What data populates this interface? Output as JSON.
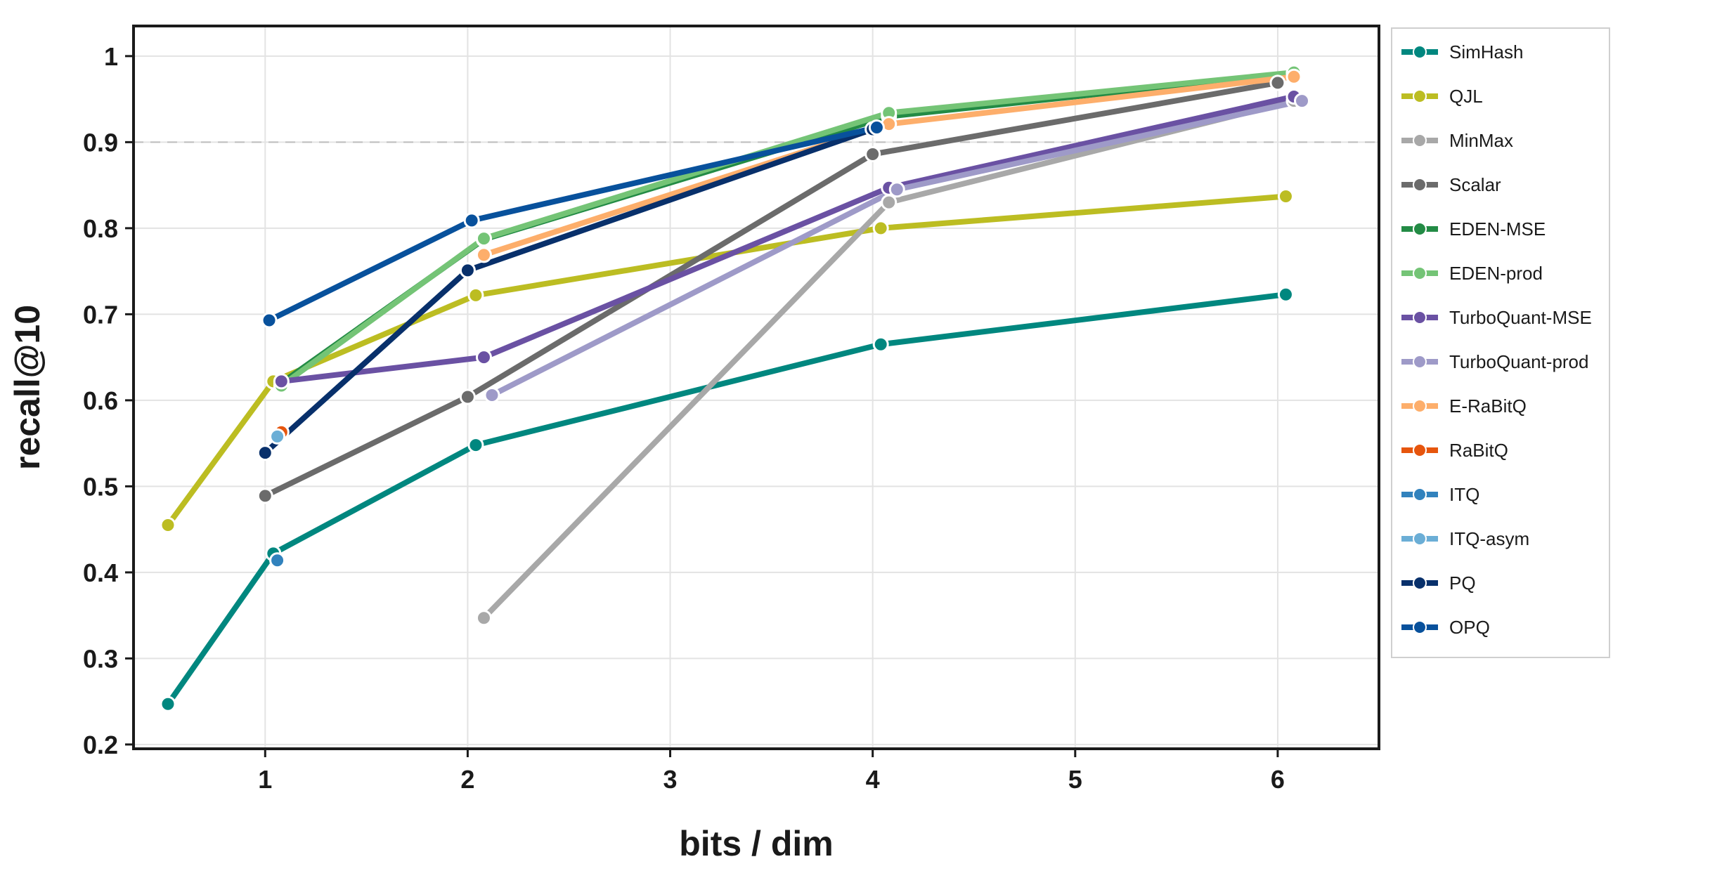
{
  "chart_data": {
    "type": "line",
    "xlabel": "bits / dim",
    "ylabel": "recall@10",
    "xlim": [
      0.35,
      6.5
    ],
    "ylim": [
      0.195,
      1.035
    ],
    "xticks": [
      1,
      2,
      3,
      4,
      5,
      6
    ],
    "yticks": [
      0.2,
      0.3,
      0.4,
      0.5,
      0.6,
      0.7,
      0.8,
      0.9,
      1
    ],
    "ytick_labels": [
      "0.2",
      "0.3",
      "0.4",
      "0.5",
      "0.6",
      "0.7",
      "0.8",
      "0.9",
      "1"
    ],
    "grid": true,
    "reference_line_y": 0.9,
    "legend_position": "outside right",
    "series": [
      {
        "name": "SimHash",
        "color": "#00877f",
        "points": [
          [
            0.52,
            0.247
          ],
          [
            1.04,
            0.422
          ],
          [
            2.04,
            0.548
          ],
          [
            4.04,
            0.665
          ],
          [
            6.04,
            0.723
          ]
        ]
      },
      {
        "name": "QJL",
        "color": "#bcbd22",
        "points": [
          [
            0.52,
            0.455
          ],
          [
            1.04,
            0.622
          ],
          [
            2.04,
            0.722
          ],
          [
            4.04,
            0.8
          ],
          [
            6.04,
            0.837
          ]
        ]
      },
      {
        "name": "MinMax",
        "color": "#a8a8a8",
        "points": [
          [
            2.08,
            0.347
          ],
          [
            4.08,
            0.83
          ],
          [
            6.08,
            0.948
          ]
        ]
      },
      {
        "name": "Scalar",
        "color": "#6b6b6b",
        "points": [
          [
            1.0,
            0.489
          ],
          [
            2.0,
            0.604
          ],
          [
            4.0,
            0.886
          ],
          [
            6.0,
            0.969
          ]
        ]
      },
      {
        "name": "EDEN-MSE",
        "color": "#238b45",
        "points": [
          [
            1.08,
            0.62
          ],
          [
            2.08,
            0.787
          ],
          [
            4.08,
            0.93
          ],
          [
            6.08,
            0.98
          ]
        ]
      },
      {
        "name": "EDEN-prod",
        "color": "#74c476",
        "points": [
          [
            1.08,
            0.617
          ],
          [
            2.08,
            0.788
          ],
          [
            4.08,
            0.934
          ],
          [
            6.08,
            0.981
          ]
        ]
      },
      {
        "name": "TurboQuant-MSE",
        "color": "#6a51a3",
        "points": [
          [
            1.08,
            0.622
          ],
          [
            2.08,
            0.65
          ],
          [
            4.08,
            0.847
          ],
          [
            6.08,
            0.953
          ]
        ]
      },
      {
        "name": "TurboQuant-prod",
        "color": "#9e9ac8",
        "points": [
          [
            2.12,
            0.606
          ],
          [
            4.12,
            0.845
          ],
          [
            6.12,
            0.948
          ]
        ]
      },
      {
        "name": "E-RaBitQ",
        "color": "#fdae6b",
        "points": [
          [
            2.08,
            0.769
          ],
          [
            4.08,
            0.921
          ],
          [
            6.08,
            0.976
          ]
        ]
      },
      {
        "name": "RaBitQ",
        "color": "#e6550d",
        "points": [
          [
            1.08,
            0.563
          ]
        ]
      },
      {
        "name": "ITQ",
        "color": "#3182bd",
        "points": [
          [
            1.06,
            0.414
          ]
        ]
      },
      {
        "name": "ITQ-asym",
        "color": "#6baed6",
        "points": [
          [
            1.06,
            0.558
          ]
        ]
      },
      {
        "name": "PQ",
        "color": "#08306b",
        "points": [
          [
            1.0,
            0.539
          ],
          [
            2.0,
            0.751
          ],
          [
            4.0,
            0.915
          ]
        ]
      },
      {
        "name": "OPQ",
        "color": "#08519c",
        "points": [
          [
            1.02,
            0.693
          ],
          [
            2.02,
            0.809
          ],
          [
            4.02,
            0.917
          ]
        ]
      }
    ]
  }
}
